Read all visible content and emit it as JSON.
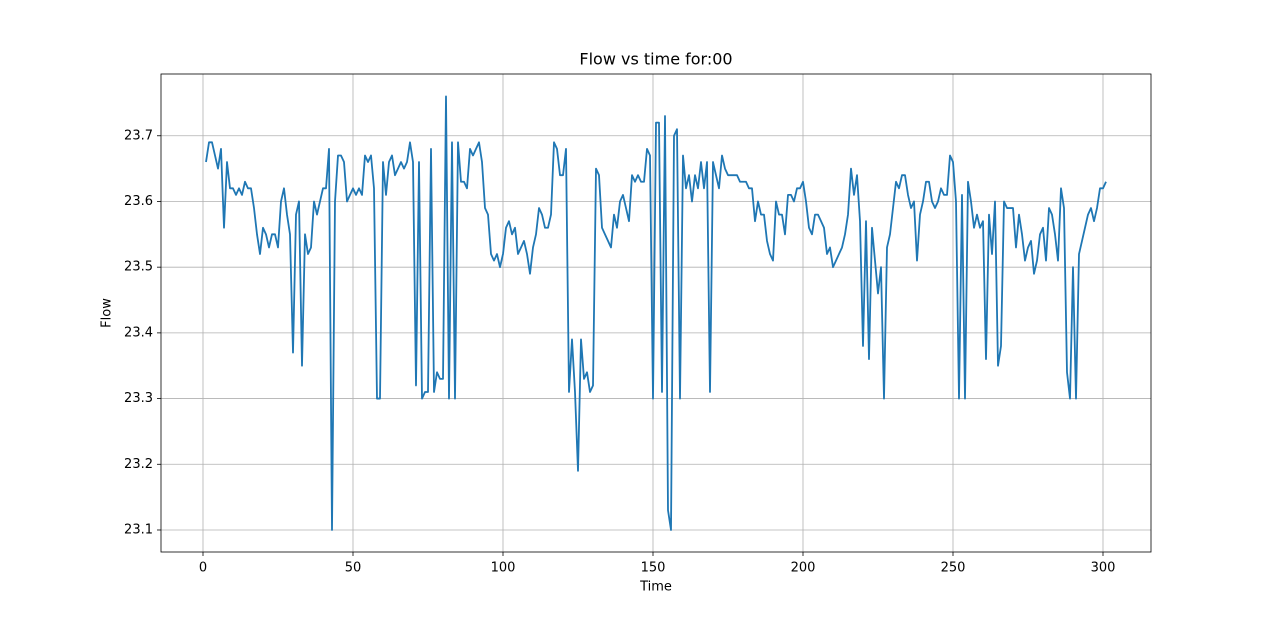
{
  "chart_data": {
    "type": "line",
    "title": "Flow vs time for:00",
    "xlabel": "Time",
    "ylabel": "Flow",
    "color": "#1f77b4",
    "grid": true,
    "xlim": [
      -14,
      316
    ],
    "ylim": [
      23.0665,
      23.794
    ],
    "xticks": [
      0,
      50,
      100,
      150,
      200,
      250,
      300
    ],
    "yticks": [
      23.1,
      23.2,
      23.3,
      23.4,
      23.5,
      23.6,
      23.7
    ],
    "x": [
      1,
      2,
      3,
      4,
      5,
      6,
      7,
      8,
      9,
      10,
      11,
      12,
      13,
      14,
      15,
      16,
      17,
      18,
      19,
      20,
      21,
      22,
      23,
      24,
      25,
      26,
      27,
      28,
      29,
      30,
      31,
      32,
      33,
      34,
      35,
      36,
      37,
      38,
      39,
      40,
      41,
      42,
      43,
      44,
      45,
      46,
      47,
      48,
      49,
      50,
      51,
      52,
      53,
      54,
      55,
      56,
      57,
      58,
      59,
      60,
      61,
      62,
      63,
      64,
      65,
      66,
      67,
      68,
      69,
      70,
      71,
      72,
      73,
      74,
      75,
      76,
      77,
      78,
      79,
      80,
      81,
      82,
      83,
      84,
      85,
      86,
      87,
      88,
      89,
      90,
      91,
      92,
      93,
      94,
      95,
      96,
      97,
      98,
      99,
      100,
      101,
      102,
      103,
      104,
      105,
      106,
      107,
      108,
      109,
      110,
      111,
      112,
      113,
      114,
      115,
      116,
      117,
      118,
      119,
      120,
      121,
      122,
      123,
      124,
      125,
      126,
      127,
      128,
      129,
      130,
      131,
      132,
      133,
      134,
      135,
      136,
      137,
      138,
      139,
      140,
      141,
      142,
      143,
      144,
      145,
      146,
      147,
      148,
      149,
      150,
      151,
      152,
      153,
      154,
      155,
      156,
      157,
      158,
      159,
      160,
      161,
      162,
      163,
      164,
      165,
      166,
      167,
      168,
      169,
      170,
      171,
      172,
      173,
      174,
      175,
      176,
      177,
      178,
      179,
      180,
      181,
      182,
      183,
      184,
      185,
      186,
      187,
      188,
      189,
      190,
      191,
      192,
      193,
      194,
      195,
      196,
      197,
      198,
      199,
      200,
      201,
      202,
      203,
      204,
      205,
      206,
      207,
      208,
      209,
      210,
      211,
      212,
      213,
      214,
      215,
      216,
      217,
      218,
      219,
      220,
      221,
      222,
      223,
      224,
      225,
      226,
      227,
      228,
      229,
      230,
      231,
      232,
      233,
      234,
      235,
      236,
      237,
      238,
      239,
      240,
      241,
      242,
      243,
      244,
      245,
      246,
      247,
      248,
      249,
      250,
      251,
      252,
      253,
      254,
      255,
      256,
      257,
      258,
      259,
      260,
      261,
      262,
      263,
      264,
      265,
      266,
      267,
      268,
      269,
      270,
      271,
      272,
      273,
      274,
      275,
      276,
      277,
      278,
      279,
      280,
      281,
      282,
      283,
      284,
      285,
      286,
      287,
      288,
      289,
      290,
      291,
      292,
      293,
      294,
      295,
      296,
      297,
      298,
      299,
      300,
      301
    ],
    "values": [
      23.66,
      23.69,
      23.69,
      23.67,
      23.65,
      23.68,
      23.56,
      23.66,
      23.62,
      23.62,
      23.61,
      23.62,
      23.61,
      23.63,
      23.62,
      23.62,
      23.59,
      23.55,
      23.52,
      23.56,
      23.55,
      23.53,
      23.55,
      23.55,
      23.53,
      23.6,
      23.62,
      23.58,
      23.55,
      23.37,
      23.58,
      23.6,
      23.35,
      23.55,
      23.52,
      23.53,
      23.6,
      23.58,
      23.6,
      23.62,
      23.62,
      23.68,
      23.1,
      23.6,
      23.67,
      23.67,
      23.66,
      23.6,
      23.61,
      23.62,
      23.61,
      23.62,
      23.61,
      23.67,
      23.66,
      23.67,
      23.62,
      23.3,
      23.3,
      23.66,
      23.61,
      23.66,
      23.67,
      23.64,
      23.65,
      23.66,
      23.65,
      23.66,
      23.69,
      23.66,
      23.32,
      23.66,
      23.3,
      23.31,
      23.31,
      23.68,
      23.31,
      23.34,
      23.33,
      23.33,
      23.76,
      23.3,
      23.69,
      23.3,
      23.69,
      23.63,
      23.63,
      23.62,
      23.68,
      23.67,
      23.68,
      23.69,
      23.66,
      23.59,
      23.58,
      23.52,
      23.51,
      23.52,
      23.5,
      23.52,
      23.56,
      23.57,
      23.55,
      23.56,
      23.52,
      23.53,
      23.54,
      23.52,
      23.49,
      23.53,
      23.55,
      23.59,
      23.58,
      23.56,
      23.56,
      23.58,
      23.69,
      23.68,
      23.64,
      23.64,
      23.68,
      23.31,
      23.39,
      23.31,
      23.19,
      23.39,
      23.33,
      23.34,
      23.31,
      23.32,
      23.65,
      23.64,
      23.56,
      23.55,
      23.54,
      23.53,
      23.58,
      23.56,
      23.6,
      23.61,
      23.59,
      23.57,
      23.64,
      23.63,
      23.64,
      23.63,
      23.63,
      23.68,
      23.67,
      23.3,
      23.72,
      23.72,
      23.31,
      23.73,
      23.13,
      23.1,
      23.7,
      23.71,
      23.3,
      23.67,
      23.62,
      23.64,
      23.6,
      23.64,
      23.62,
      23.66,
      23.62,
      23.66,
      23.31,
      23.66,
      23.64,
      23.62,
      23.67,
      23.65,
      23.64,
      23.64,
      23.64,
      23.64,
      23.63,
      23.63,
      23.63,
      23.62,
      23.62,
      23.57,
      23.6,
      23.58,
      23.58,
      23.54,
      23.52,
      23.51,
      23.6,
      23.58,
      23.58,
      23.55,
      23.61,
      23.61,
      23.6,
      23.62,
      23.62,
      23.63,
      23.6,
      23.56,
      23.55,
      23.58,
      23.58,
      23.57,
      23.56,
      23.52,
      23.53,
      23.5,
      23.51,
      23.52,
      23.53,
      23.55,
      23.58,
      23.65,
      23.61,
      23.64,
      23.57,
      23.38,
      23.57,
      23.36,
      23.56,
      23.51,
      23.46,
      23.5,
      23.3,
      23.53,
      23.55,
      23.59,
      23.63,
      23.62,
      23.64,
      23.64,
      23.61,
      23.59,
      23.6,
      23.51,
      23.58,
      23.6,
      23.63,
      23.63,
      23.6,
      23.59,
      23.6,
      23.62,
      23.61,
      23.61,
      23.67,
      23.66,
      23.6,
      23.3,
      23.61,
      23.3,
      23.63,
      23.6,
      23.56,
      23.58,
      23.56,
      23.57,
      23.36,
      23.58,
      23.52,
      23.6,
      23.35,
      23.38,
      23.6,
      23.59,
      23.59,
      23.59,
      23.53,
      23.58,
      23.55,
      23.51,
      23.53,
      23.54,
      23.49,
      23.51,
      23.55,
      23.56,
      23.51,
      23.59,
      23.58,
      23.55,
      23.51,
      23.62,
      23.59,
      23.34,
      23.3,
      23.5,
      23.3,
      23.52,
      23.54,
      23.56,
      23.58,
      23.59,
      23.57,
      23.59,
      23.62,
      23.62,
      23.63
    ]
  }
}
